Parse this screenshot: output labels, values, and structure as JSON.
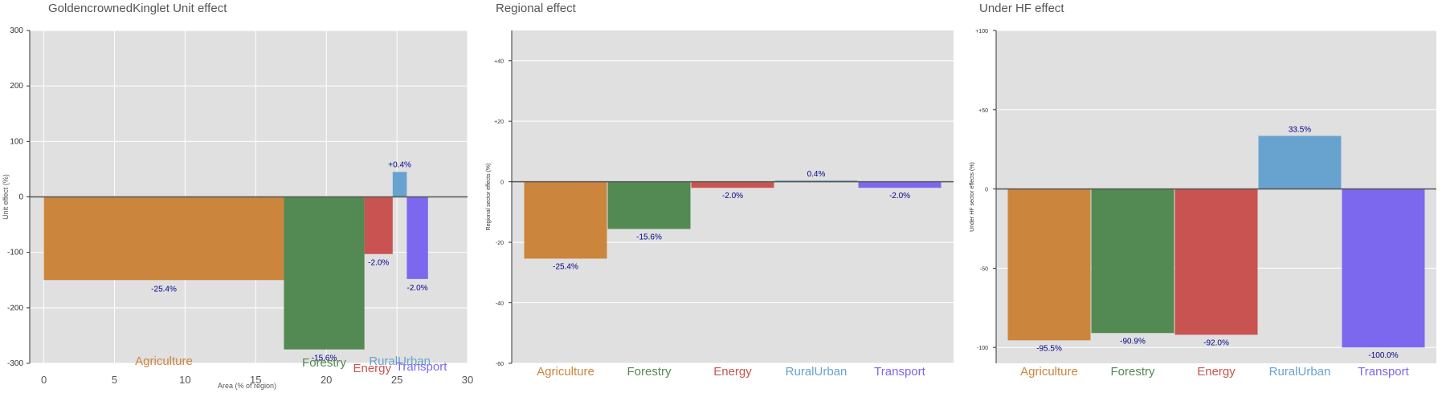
{
  "colors": {
    "Agriculture": "#cc853c",
    "Forestry": "#538a53",
    "Energy": "#c95350",
    "RuralUrban": "#67a3ce",
    "Transport": "#7b68ee",
    "plot_bg": "#e0e0e0",
    "label_text": "#00008b"
  },
  "chart_data": [
    {
      "type": "bar",
      "title": "GoldencrownedKinglet Unit effect",
      "xlabel": "Area (% of region)",
      "ylabel": "Unit effect (%)",
      "xlim": [
        -1,
        30
      ],
      "ylim": [
        -300,
        300
      ],
      "x_ticks": [
        "0",
        "5",
        "10",
        "15",
        "20",
        "25",
        "30"
      ],
      "y_ticks": [
        "300",
        "200",
        "100",
        "0",
        "-100",
        "-200",
        "-300"
      ],
      "grid": true,
      "bars": [
        {
          "category": "Agriculture",
          "x_start": 0,
          "x_end": 17.0,
          "value": -150,
          "label": "-25.4%"
        },
        {
          "category": "Forestry",
          "x_start": 17.0,
          "x_end": 22.7,
          "value": -275,
          "label": "-15.6%"
        },
        {
          "category": "Energy",
          "x_start": 22.7,
          "x_end": 24.7,
          "value": -103,
          "label": "-2.0%"
        },
        {
          "category": "RuralUrban",
          "x_start": 24.7,
          "x_end": 25.7,
          "value": 45,
          "label": "+0.4%"
        },
        {
          "category": "Transport",
          "x_start": 25.7,
          "x_end": 27.2,
          "value": -148,
          "label": "-2.0%"
        }
      ]
    },
    {
      "type": "bar",
      "title": "Regional effect",
      "xlabel": "",
      "ylabel": "Regional sector effects (%)",
      "ylim": [
        -60,
        50
      ],
      "y_ticks": [
        "+40",
        "+20",
        "0",
        "-20",
        "-40",
        "-60"
      ],
      "grid": true,
      "categories": [
        "Agriculture",
        "Forestry",
        "Energy",
        "RuralUrban",
        "Transport"
      ],
      "values": [
        -25.4,
        -15.6,
        -2.0,
        0.4,
        -2.0
      ],
      "labels": [
        "-25.4%",
        "-15.6%",
        "-2.0%",
        "0.4%",
        "-2.0%"
      ]
    },
    {
      "type": "bar",
      "title": "Under HF effect",
      "xlabel": "",
      "ylabel": "Under HF sector effects (%)",
      "ylim": [
        -110,
        100
      ],
      "y_ticks": [
        "+100",
        "+50",
        "0",
        "-50",
        "-100"
      ],
      "grid": true,
      "categories": [
        "Agriculture",
        "Forestry",
        "Energy",
        "RuralUrban",
        "Transport"
      ],
      "values": [
        -95.5,
        -90.9,
        -92.0,
        33.5,
        -100.0
      ],
      "labels": [
        "-95.5%",
        "-90.9%",
        "-92.0%",
        "33.5%",
        "-100.0%"
      ]
    }
  ]
}
